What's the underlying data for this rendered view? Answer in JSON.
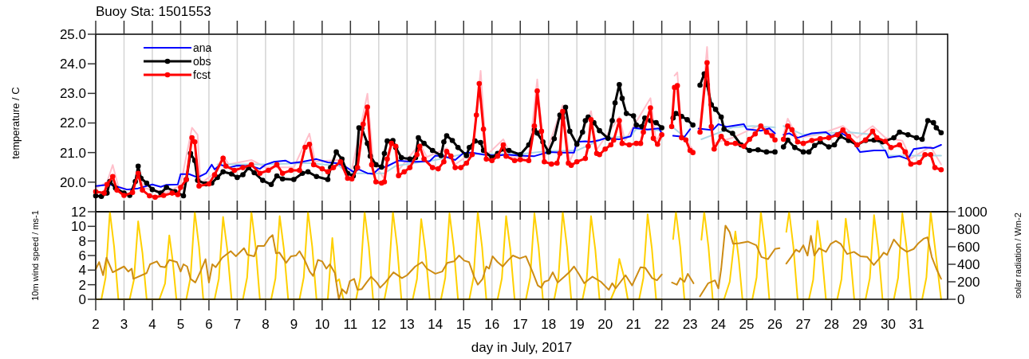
{
  "chart_data": [
    {
      "type": "line",
      "title": "Buoy Sta: 1501553",
      "ylabel": "temperature / C",
      "xlim": [
        2,
        32.1
      ],
      "xticks": [
        2,
        3,
        4,
        5,
        6,
        7,
        8,
        9,
        10,
        11,
        12,
        13,
        14,
        15,
        16,
        17,
        18,
        19,
        20,
        21,
        22,
        23,
        24,
        25,
        26,
        27,
        28,
        29,
        30,
        31
      ],
      "ylim": [
        19.0,
        25.0
      ],
      "yticks": [
        {
          "value": 20,
          "label": "20.0"
        },
        {
          "value": 21,
          "label": "21.0"
        },
        {
          "value": 22,
          "label": "22.0"
        },
        {
          "value": 23,
          "label": "23.0"
        },
        {
          "value": 24,
          "label": "24.0"
        },
        {
          "value": 25,
          "label": "25.0"
        }
      ],
      "grid": "x",
      "legend": "top left",
      "tick_labels": "y",
      "series": [
        {
          "color": "#ffc0cb",
          "x": [
            2.0,
            2.4,
            2.6,
            2.8,
            3.3,
            3.5,
            3.7,
            4.5,
            5.0,
            5.4,
            5.6,
            5.7,
            6.2,
            6.5,
            6.7,
            7.5,
            8.0,
            9.0,
            9.55,
            9.75,
            10.6,
            11.0,
            11.6,
            11.8,
            12.2,
            12.5,
            12.7,
            13.45,
            13.7,
            14.4,
            14.7,
            15.3,
            15.6,
            15.8,
            16.4,
            16.7,
            17.3,
            17.6,
            17.85,
            18.5,
            18.75,
            19.5,
            19.7,
            20.5,
            20.7,
            21.6,
            21.8,
            22.0,
            22.2,
            22.45,
            22.55,
            22.7,
            23.1,
            23.2,
            23.35,
            23.6,
            23.8,
            24.5,
            25.5,
            26.0,
            26.15,
            26.3,
            26.45,
            26.8,
            27.5,
            28.4,
            28.9,
            29.45,
            29.9,
            30.5,
            30.8,
            31.5,
            31.87
          ],
          "values": [
            19.8,
            20.0,
            20.58,
            19.85,
            19.7,
            20.4,
            19.8,
            19.65,
            19.9,
            21.84,
            21.6,
            19.95,
            20.3,
            20.9,
            20.6,
            20.75,
            20.5,
            20.5,
            21.64,
            20.7,
            20.75,
            20.2,
            22.99,
            20.7,
            20.1,
            21.45,
            20.4,
            21.3,
            20.85,
            21.15,
            20.6,
            21.0,
            23.76,
            20.9,
            21.45,
            20.85,
            20.85,
            23.47,
            20.8,
            22.6,
            20.7,
            22.4,
            21.1,
            22.2,
            21.4,
            22.84,
            21.4,
            21.7,
            null,
            23.6,
            23.71,
            21.6,
            21.1,
            null,
            21.8,
            24.57,
            21.3,
            21.5,
            21.95,
            21.6,
            null,
            21.6,
            22.15,
            21.5,
            21.6,
            21.9,
            21.5,
            21.9,
            21.5,
            21.4,
            20.8,
            21.2,
            20.6
          ]
        },
        {
          "color": "#add8e6",
          "x": [
            6.3,
            8.0,
            9.5,
            10.6,
            10.9,
            12.2,
            12.6,
            14.0,
            15.0,
            17.0,
            18.0,
            19.0,
            20.0,
            20.9,
            21.1,
            21.9,
            22.2,
            22.4,
            22.9,
            23.15,
            23.4,
            24.5,
            25.2,
            26.0,
            26.15,
            26.3,
            27.0,
            28.5,
            29.5,
            30.0,
            31.87
          ],
          "values": [
            20.6,
            20.6,
            20.65,
            20.55,
            20.3,
            20.3,
            20.55,
            20.75,
            20.95,
            20.95,
            21.05,
            21.07,
            21.5,
            21.55,
            21.8,
            21.75,
            null,
            21.85,
            21.45,
            null,
            21.45,
            21.85,
            21.9,
            21.85,
            null,
            21.9,
            21.6,
            21.7,
            21.6,
            20.9,
            20.9
          ]
        },
        {
          "name": "ana",
          "color": "#0000ff",
          "marker": "none",
          "x": [
            2,
            2.5,
            3.1,
            3.5,
            4,
            4.3,
            4.5,
            4.9,
            5,
            5.3,
            5.6,
            5.9,
            6.1,
            6.2,
            6.4,
            6.7,
            7,
            7.5,
            7.8,
            8,
            8.3,
            8.7,
            8.9,
            9.3,
            9.8,
            10.2,
            10.5,
            10.8,
            11.1,
            11.3,
            11.6,
            11.8,
            12,
            12.3,
            12.7,
            13,
            13.3,
            13.8,
            14,
            14.3,
            14.7,
            15,
            15.3,
            15.7,
            16.2,
            16.5,
            17,
            17.5,
            18,
            18.5,
            18.9,
            19,
            19.3,
            19.5,
            19.8,
            20,
            20.5,
            20.9,
            21,
            21.5,
            21.9,
            22,
            22.2,
            22.4,
            22.8,
            23,
            23.15,
            23.3,
            23.8,
            24,
            24.3,
            24.7,
            24.9,
            25,
            25.5,
            25.8,
            26,
            26.15,
            26.3,
            26.5,
            26.8,
            27.3,
            27.8,
            28,
            28.3,
            28.7,
            29,
            29.5,
            29.9,
            30,
            30.4,
            30.7,
            30.9,
            31.3,
            31.6,
            31.87
          ],
          "values": [
            19.87,
            19.92,
            19.75,
            19.79,
            19.92,
            19.84,
            19.91,
            19.92,
            20.27,
            20.27,
            20.16,
            20.3,
            20.59,
            20.43,
            20.59,
            20.49,
            20.56,
            20.54,
            20.45,
            20.59,
            20.69,
            20.73,
            20.64,
            20.69,
            20.78,
            20.67,
            20.64,
            20.54,
            20.35,
            20.43,
            20.3,
            20.28,
            20.45,
            20.54,
            20.73,
            20.7,
            20.69,
            20.71,
            20.9,
            20.88,
            20.75,
            20.99,
            21.0,
            20.93,
            20.9,
            20.93,
            20.9,
            20.88,
            21.02,
            21.0,
            21.0,
            21.36,
            21.38,
            21.36,
            21.42,
            21.48,
            21.45,
            21.55,
            21.84,
            21.78,
            21.82,
            21.65,
            null,
            21.57,
            21.53,
            21.79,
            null,
            21.81,
            21.76,
            21.96,
            21.87,
            21.93,
            21.96,
            21.79,
            21.74,
            21.82,
            21.65,
            null,
            21.6,
            21.65,
            21.5,
            21.65,
            21.69,
            21.55,
            21.69,
            21.45,
            21.02,
            21.07,
            21.07,
            20.83,
            20.88,
            20.78,
            21.12,
            21.17,
            21.15,
            21.26
          ]
        },
        {
          "name": "obs",
          "color": "#000000",
          "marker": "circle",
          "x": [
            2.0,
            2.2,
            2.4,
            2.5,
            2.7,
            3.0,
            3.2,
            3.4,
            3.5,
            3.6,
            3.8,
            4.0,
            4.3,
            4.5,
            4.8,
            5.1,
            5.2,
            5.35,
            5.5,
            5.6,
            5.9,
            6.1,
            6.3,
            6.5,
            6.8,
            7.0,
            7.2,
            7.4,
            7.6,
            7.9,
            8.2,
            8.4,
            8.6,
            9.0,
            9.3,
            9.5,
            9.8,
            10.2,
            10.3,
            10.5,
            10.7,
            10.9,
            11.1,
            11.2,
            11.3,
            11.4,
            11.6,
            11.7,
            11.9,
            12.1,
            12.2,
            12.3,
            12.5,
            12.6,
            12.8,
            13.1,
            13.3,
            13.4,
            13.6,
            13.9,
            14.2,
            14.3,
            14.4,
            14.6,
            14.8,
            15.1,
            15.2,
            15.4,
            15.6,
            15.7,
            16.0,
            16.2,
            16.4,
            16.6,
            17.0,
            17.3,
            17.5,
            17.6,
            17.8,
            18.0,
            18.2,
            18.4,
            18.5,
            18.6,
            18.75,
            19.0,
            19.2,
            19.3,
            19.4,
            19.6,
            19.8,
            20.1,
            20.25,
            20.35,
            20.5,
            20.6,
            20.75,
            21.0,
            21.1,
            21.3,
            21.4,
            21.6,
            21.8,
            22.0,
            22.2,
            22.4,
            22.5,
            22.7,
            22.9,
            23.1,
            23.2,
            23.35,
            23.5,
            23.6,
            23.75,
            23.9,
            24.1,
            24.2,
            24.5,
            24.8,
            25.1,
            25.4,
            25.7,
            26.0,
            26.15,
            26.3,
            26.45,
            26.7,
            27.0,
            27.2,
            27.4,
            27.6,
            27.9,
            28.1,
            28.3,
            28.6,
            28.9,
            29.2,
            29.5,
            29.8,
            30.2,
            30.4,
            30.7,
            31.0,
            31.2,
            31.4,
            31.6,
            31.7,
            31.87
          ],
          "values": [
            19.54,
            19.52,
            19.63,
            20.02,
            19.8,
            19.63,
            19.55,
            20.02,
            20.54,
            20.13,
            19.97,
            19.75,
            19.63,
            19.82,
            19.68,
            19.54,
            20.09,
            20.97,
            20.73,
            20.06,
            19.94,
            19.97,
            20.16,
            20.35,
            20.28,
            20.16,
            20.25,
            20.49,
            20.32,
            20.06,
            19.92,
            20.21,
            20.11,
            20.09,
            20.3,
            20.35,
            20.19,
            20.09,
            20.49,
            21.02,
            20.78,
            20.3,
            20.21,
            20.49,
            21.84,
            21.82,
            21.31,
            20.88,
            20.59,
            20.51,
            20.97,
            21.39,
            21.41,
            21.17,
            20.83,
            20.78,
            20.83,
            21.5,
            21.31,
            21.07,
            20.9,
            21.36,
            21.57,
            21.41,
            21.17,
            20.9,
            21.17,
            21.39,
            21.34,
            21.07,
            20.83,
            20.97,
            21.12,
            21.07,
            20.93,
            21.26,
            21.77,
            21.66,
            21.36,
            21.02,
            21.47,
            22.27,
            22.17,
            22.53,
            21.72,
            21.28,
            21.69,
            22.08,
            22.2,
            22.01,
            21.74,
            21.48,
            22.08,
            22.68,
            23.3,
            22.83,
            22.32,
            22.24,
            21.93,
            21.88,
            22.17,
            22.08,
            22.01,
            21.84,
            null,
            22.17,
            22.32,
            22.22,
            22.11,
            21.93,
            null,
            23.28,
            23.66,
            23.3,
            22.62,
            22.46,
            22.2,
            21.79,
            21.65,
            21.26,
            21.07,
            21.09,
            21.02,
            21.02,
            null,
            21.19,
            21.42,
            21.17,
            21.02,
            21.02,
            21.24,
            21.36,
            21.19,
            21.26,
            21.55,
            21.41,
            21.26,
            21.41,
            21.42,
            21.36,
            21.5,
            21.69,
            21.6,
            21.5,
            21.45,
            22.08,
            22.01,
            21.84,
            21.67
          ]
        },
        {
          "name": "fcst",
          "color": "#ff0000",
          "marker": "circle",
          "x": [
            2.0,
            2.3,
            2.4,
            2.6,
            2.75,
            3.0,
            3.3,
            3.5,
            3.65,
            3.9,
            4.1,
            4.4,
            4.7,
            4.9,
            5.0,
            5.2,
            5.4,
            5.5,
            5.65,
            6.0,
            6.2,
            6.5,
            6.6,
            6.9,
            7.2,
            7.5,
            7.8,
            8.1,
            8.4,
            8.6,
            8.9,
            9.2,
            9.4,
            9.55,
            9.7,
            10.0,
            10.2,
            10.4,
            10.65,
            10.9,
            11.05,
            11.25,
            11.45,
            11.6,
            11.75,
            11.9,
            12.1,
            12.2,
            12.3,
            12.45,
            12.6,
            12.7,
            12.9,
            13.1,
            13.35,
            13.45,
            13.6,
            13.9,
            14.1,
            14.3,
            14.4,
            14.55,
            14.7,
            14.9,
            15.1,
            15.3,
            15.45,
            15.55,
            15.7,
            15.8,
            16.0,
            16.2,
            16.4,
            16.5,
            16.8,
            17.0,
            17.3,
            17.5,
            17.6,
            17.75,
            17.85,
            18.1,
            18.3,
            18.4,
            18.5,
            18.7,
            18.8,
            19.0,
            19.3,
            19.4,
            19.5,
            19.7,
            19.8,
            20.0,
            20.2,
            20.3,
            20.5,
            20.6,
            20.85,
            21.1,
            21.25,
            21.35,
            21.6,
            21.7,
            21.85,
            22.0,
            22.2,
            22.35,
            22.45,
            22.55,
            22.7,
            22.85,
            23.0,
            23.1,
            23.2,
            23.35,
            23.6,
            23.75,
            23.85,
            24.1,
            24.3,
            24.6,
            24.9,
            25.1,
            25.3,
            25.5,
            25.7,
            25.9,
            26.0,
            26.15,
            26.3,
            26.45,
            26.6,
            26.8,
            27.0,
            27.3,
            27.6,
            27.9,
            28.2,
            28.4,
            28.6,
            28.9,
            29.2,
            29.45,
            29.6,
            29.9,
            30.1,
            30.4,
            30.6,
            30.8,
            31.1,
            31.3,
            31.5,
            31.65,
            31.87
          ],
          "values": [
            19.68,
            19.63,
            19.92,
            20.19,
            19.73,
            19.55,
            19.65,
            20.3,
            19.73,
            19.54,
            19.49,
            19.55,
            19.63,
            19.58,
            19.82,
            20.09,
            21.5,
            21.36,
            19.87,
            19.94,
            20.25,
            20.81,
            20.54,
            20.4,
            20.49,
            20.59,
            20.3,
            20.4,
            20.59,
            20.3,
            20.4,
            20.4,
            21.18,
            21.28,
            20.59,
            20.45,
            20.35,
            20.49,
            20.69,
            20.13,
            20.11,
            20.49,
            21.96,
            22.54,
            20.59,
            20.01,
            19.97,
            20.01,
            20.78,
            21.31,
            21.21,
            20.22,
            20.35,
            20.49,
            20.93,
            21.21,
            20.78,
            20.49,
            20.45,
            20.69,
            21.04,
            20.88,
            20.49,
            20.49,
            20.64,
            20.93,
            22.27,
            23.33,
            21.79,
            20.78,
            20.73,
            20.88,
            21.26,
            20.88,
            20.73,
            20.76,
            20.73,
            21.9,
            23.08,
            21.72,
            20.69,
            20.61,
            20.64,
            20.97,
            22.39,
            20.64,
            20.57,
            20.69,
            20.8,
            21.21,
            22.11,
            20.97,
            20.93,
            21.12,
            21.26,
            21.42,
            22.08,
            21.31,
            21.26,
            21.31,
            21.31,
            21.69,
            22.51,
            21.48,
            21.28,
            21.6,
            null,
            21.88,
            23.2,
            23.26,
            21.5,
            21.43,
            21.07,
            21.0,
            null,
            21.69,
            24.04,
            21.88,
            21.12,
            21.55,
            21.31,
            21.31,
            21.21,
            21.45,
            21.63,
            21.9,
            21.69,
            21.57,
            21.43,
            null,
            21.45,
            21.9,
            21.77,
            21.36,
            21.31,
            21.41,
            21.47,
            21.5,
            21.6,
            21.76,
            21.55,
            21.26,
            21.43,
            21.72,
            21.5,
            21.38,
            21.17,
            21.26,
            21.02,
            20.61,
            20.66,
            20.93,
            20.93,
            20.49,
            20.42
          ]
        }
      ]
    },
    {
      "type": "line",
      "xlabel": "day in July, 2017",
      "ylabel": "10m wind speed / ms-1",
      "y2label": "solar radiation / Wm-2",
      "xlim": [
        2,
        32.1
      ],
      "xticks": [
        2,
        3,
        4,
        5,
        6,
        7,
        8,
        9,
        10,
        11,
        12,
        13,
        14,
        15,
        16,
        17,
        18,
        19,
        20,
        21,
        22,
        23,
        24,
        25,
        26,
        27,
        28,
        29,
        30,
        31
      ],
      "ylim": [
        0,
        12
      ],
      "yticks": [
        0,
        2,
        4,
        6,
        8,
        10,
        12
      ],
      "y2lim": [
        0,
        1000
      ],
      "y2ticks": [
        0,
        200,
        400,
        600,
        800,
        1000
      ],
      "grid": "x",
      "series": [
        {
          "color": "#ffd000",
          "axis": "y2",
          "x": [
            2.0,
            2.2,
            2.35,
            2.5,
            2.65,
            2.8,
            3.2,
            3.35,
            3.5,
            3.65,
            3.8,
            4.25,
            4.45,
            4.6,
            4.72,
            4.85,
            5.2,
            5.35,
            5.5,
            5.65,
            5.8,
            6.2,
            6.35,
            6.5,
            6.65,
            6.8,
            7.2,
            7.35,
            7.5,
            7.65,
            7.8,
            8.2,
            8.35,
            8.5,
            8.65,
            8.8,
            9.2,
            9.35,
            9.5,
            9.65,
            9.8,
            10.2,
            10.36,
            10.5,
            10.6,
            10.75,
            11.2,
            11.35,
            11.5,
            11.65,
            11.8,
            12.2,
            12.35,
            12.5,
            12.65,
            12.8,
            13.2,
            13.35,
            13.5,
            13.65,
            13.8,
            14.2,
            14.35,
            14.5,
            14.65,
            14.8,
            15.2,
            15.35,
            15.5,
            15.65,
            15.8,
            16.2,
            16.35,
            16.5,
            16.65,
            16.8,
            17.2,
            17.35,
            17.5,
            17.65,
            17.8,
            18.2,
            18.35,
            18.5,
            18.65,
            18.8,
            19.2,
            19.35,
            19.5,
            19.65,
            19.8,
            20.2,
            20.35,
            20.5,
            20.65,
            20.8,
            21.2,
            21.35,
            21.5,
            21.65,
            21.8,
            22.0,
            22.1,
            22.4,
            22.5,
            22.65,
            22.8,
            22.95,
            23.1,
            23.4,
            23.5,
            23.65,
            23.8,
            24.2,
            24.4,
            24.6,
            24.72,
            24.85,
            25.2,
            25.35,
            25.5,
            25.65,
            25.8,
            26.05,
            26.1,
            26.4,
            26.5,
            26.65,
            26.8,
            27.2,
            27.35,
            27.5,
            27.65,
            27.8,
            28.2,
            28.35,
            28.5,
            28.65,
            28.8,
            29.2,
            29.35,
            29.5,
            29.65,
            29.8,
            30.2,
            30.35,
            30.5,
            30.65,
            30.8,
            31.2,
            31.35,
            31.5,
            31.65,
            31.87
          ],
          "values": [
            0,
            0,
            250,
            1000,
            600,
            0,
            0,
            222,
            890,
            534,
            0,
            0,
            180,
            730,
            440,
            0,
            0,
            250,
            1000,
            600,
            0,
            0,
            235,
            940,
            564,
            0,
            0,
            250,
            1000,
            600,
            0,
            0,
            238,
            950,
            570,
            0,
            0,
            250,
            1000,
            600,
            0,
            0,
            700,
            200,
            230,
            0,
            0,
            250,
            1000,
            600,
            0,
            0,
            250,
            1000,
            600,
            0,
            0,
            229,
            917,
            550,
            0,
            0,
            245,
            981,
            589,
            0,
            0,
            250,
            1000,
            600,
            0,
            0,
            238,
            950,
            570,
            0,
            0,
            245,
            981,
            589,
            0,
            0,
            250,
            1000,
            600,
            0,
            0,
            238,
            951,
            571,
            0,
            0,
            116,
            462,
            277,
            0,
            0,
            243,
            970,
            582,
            0,
            0,
            null,
            688,
            1000,
            600,
            0,
            0,
            null,
            680,
            1000,
            600,
            0,
            0,
            200,
            774,
            460,
            0,
            0,
            250,
            1000,
            600,
            0,
            null,
            null,
            770,
            1000,
            600,
            0,
            0,
            224,
            895,
            537,
            0,
            0,
            230,
            921,
            553,
            0,
            0,
            240,
            962,
            577,
            0,
            0,
            245,
            981,
            589,
            0,
            0,
            250,
            1000,
            600,
            0
          ]
        },
        {
          "color": "#cd8c14",
          "x": [
            2.0,
            2.12,
            2.26,
            2.38,
            2.6,
            2.85,
            3.0,
            3.15,
            3.27,
            3.33,
            3.8,
            3.92,
            4.16,
            4.28,
            4.45,
            4.6,
            4.87,
            5.0,
            5.1,
            5.23,
            5.35,
            5.52,
            5.7,
            5.88,
            6.0,
            6.12,
            6.24,
            6.47,
            6.77,
            6.95,
            7.24,
            7.36,
            7.6,
            7.72,
            7.95,
            8.13,
            8.25,
            8.37,
            8.49,
            8.73,
            8.9,
            9.08,
            9.2,
            9.38,
            9.56,
            9.68,
            9.85,
            10.0,
            10.15,
            10.27,
            10.45,
            10.59,
            10.7,
            10.86,
            10.98,
            11.13,
            11.25,
            11.4,
            11.57,
            11.73,
            11.93,
            12.05,
            12.23,
            12.52,
            12.82,
            13.0,
            13.29,
            13.53,
            13.7,
            14.0,
            14.24,
            14.42,
            14.66,
            14.84,
            15.02,
            15.19,
            15.37,
            15.5,
            15.67,
            15.8,
            15.9,
            16.02,
            16.2,
            16.38,
            16.56,
            16.74,
            16.98,
            17.2,
            17.44,
            17.62,
            17.74,
            17.85,
            18.0,
            18.15,
            18.32,
            18.56,
            18.73,
            18.9,
            19.08,
            19.26,
            19.55,
            19.85,
            20.13,
            20.25,
            20.37,
            20.72,
            20.95,
            21.25,
            21.42,
            21.66,
            21.83,
            22.0,
            22.2,
            22.36,
            22.53,
            22.65,
            22.8,
            22.92,
            23.12,
            23.25,
            23.35,
            23.64,
            23.88,
            24.0,
            24.1,
            24.25,
            24.4,
            24.52,
            24.75,
            25.05,
            25.34,
            25.52,
            25.75,
            26.0,
            26.16,
            26.3,
            26.4,
            26.57,
            26.74,
            26.86,
            27.0,
            27.15,
            27.27,
            27.39,
            27.56,
            27.8,
            27.97,
            28.15,
            28.32,
            28.55,
            28.79,
            29.02,
            29.26,
            29.49,
            29.73,
            29.84,
            29.96,
            30.2,
            30.43,
            30.66,
            30.9,
            31.07,
            31.25,
            31.39,
            31.54,
            31.7,
            31.87
          ],
          "values": [
            4.1,
            5.1,
            3.3,
            5.7,
            3.7,
            4.2,
            4.5,
            3.8,
            4.2,
            2.8,
            3.6,
            4.8,
            5.2,
            4.5,
            4.4,
            5.4,
            5.1,
            3.8,
            4.8,
            4.5,
            2.8,
            2.3,
            3.8,
            5.5,
            2.3,
            4.8,
            4.4,
            5.7,
            6.6,
            5.9,
            7.0,
            6.1,
            5.9,
            7.3,
            7.3,
            8.4,
            8.8,
            6.3,
            6.4,
            5.0,
            5.9,
            6.0,
            6.6,
            5.4,
            3.8,
            3.2,
            5.4,
            5.2,
            4.2,
            4.8,
            3.6,
            0,
            1.4,
            0.8,
            2.5,
            2.8,
            1.3,
            1.4,
            2.3,
            3.1,
            2.3,
            1.6,
            2.3,
            3.7,
            2.9,
            3.3,
            4.5,
            5.1,
            4.2,
            3.5,
            3.8,
            5.0,
            5.2,
            6.0,
            5.3,
            5.1,
            3.1,
            2.0,
            2.8,
            4.5,
            4.2,
            5.9,
            5.1,
            4.5,
            5.3,
            6.0,
            5.6,
            5.9,
            3.7,
            1.9,
            1.6,
            2.4,
            2.6,
            3.7,
            2.3,
            3.1,
            3.7,
            4.5,
            3.4,
            2.2,
            3.1,
            2.4,
            1.3,
            2.2,
            1.5,
            3.3,
            1.9,
            4.4,
            4.3,
            2.9,
            2.6,
            3.4,
            null,
            2.3,
            2.0,
            2.9,
            2.4,
            3.5,
            2.2,
            null,
            0.4,
            2.2,
            2.6,
            1.5,
            4.2,
            10.1,
            9.2,
            7.6,
            7.7,
            7.9,
            7.4,
            5.8,
            5.5,
            6.9,
            7.0,
            null,
            4.9,
            5.8,
            6.8,
            6.5,
            7.4,
            6.0,
            8.7,
            6.0,
            7.0,
            6.5,
            7.6,
            8.0,
            7.6,
            6.2,
            6.5,
            5.9,
            5.8,
            4.7,
            5.8,
            6.4,
            6.1,
            8.2,
            7.1,
            6.5,
            6.9,
            7.7,
            8.3,
            8.5,
            5.8,
            4.2,
            2.8
          ]
        }
      ]
    }
  ]
}
